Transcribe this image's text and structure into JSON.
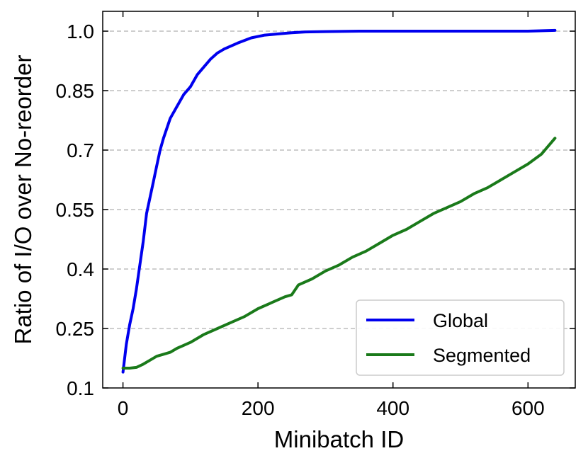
{
  "chart_data": {
    "type": "line",
    "xlabel": "Minibatch ID",
    "ylabel": "Ratio of I/O over No-reorder",
    "xlim": [
      -30,
      670
    ],
    "ylim": [
      0.1,
      1.05
    ],
    "xticks": [
      0,
      200,
      400,
      600
    ],
    "xtick_labels": [
      "0",
      "200",
      "400",
      "600"
    ],
    "yticks": [
      0.1,
      0.25,
      0.4,
      0.55,
      0.7,
      0.85,
      1.0
    ],
    "ytick_labels": [
      "0.1",
      "0.25",
      "0.4",
      "0.55",
      "0.7",
      "0.85",
      "1.0"
    ],
    "grid": "horizontal dashed",
    "legend_position": "lower-right",
    "series": [
      {
        "name": "Global",
        "color": "#0000ee",
        "x": [
          0,
          5,
          10,
          15,
          20,
          25,
          30,
          35,
          40,
          45,
          50,
          55,
          60,
          70,
          80,
          90,
          100,
          110,
          120,
          130,
          140,
          150,
          170,
          190,
          210,
          230,
          250,
          270,
          300,
          350,
          400,
          450,
          500,
          550,
          600,
          640
        ],
        "y": [
          0.14,
          0.21,
          0.26,
          0.3,
          0.35,
          0.41,
          0.47,
          0.54,
          0.58,
          0.62,
          0.66,
          0.7,
          0.73,
          0.78,
          0.81,
          0.84,
          0.86,
          0.89,
          0.91,
          0.93,
          0.945,
          0.955,
          0.97,
          0.983,
          0.99,
          0.993,
          0.996,
          0.998,
          0.999,
          1.0,
          1.0,
          1.0,
          1.0,
          1.0,
          1.0,
          1.002
        ]
      },
      {
        "name": "Segmented",
        "color": "#1a7a1a",
        "x": [
          0,
          10,
          20,
          30,
          40,
          50,
          60,
          70,
          80,
          100,
          120,
          140,
          160,
          180,
          200,
          220,
          240,
          250,
          260,
          280,
          300,
          320,
          340,
          360,
          380,
          400,
          420,
          440,
          460,
          480,
          500,
          520,
          540,
          560,
          580,
          600,
          620,
          640
        ],
        "y": [
          0.15,
          0.15,
          0.152,
          0.16,
          0.17,
          0.18,
          0.185,
          0.19,
          0.2,
          0.215,
          0.235,
          0.25,
          0.265,
          0.28,
          0.3,
          0.315,
          0.33,
          0.335,
          0.36,
          0.375,
          0.395,
          0.41,
          0.43,
          0.445,
          0.465,
          0.485,
          0.5,
          0.52,
          0.54,
          0.555,
          0.57,
          0.59,
          0.605,
          0.625,
          0.645,
          0.665,
          0.69,
          0.73
        ]
      }
    ]
  }
}
